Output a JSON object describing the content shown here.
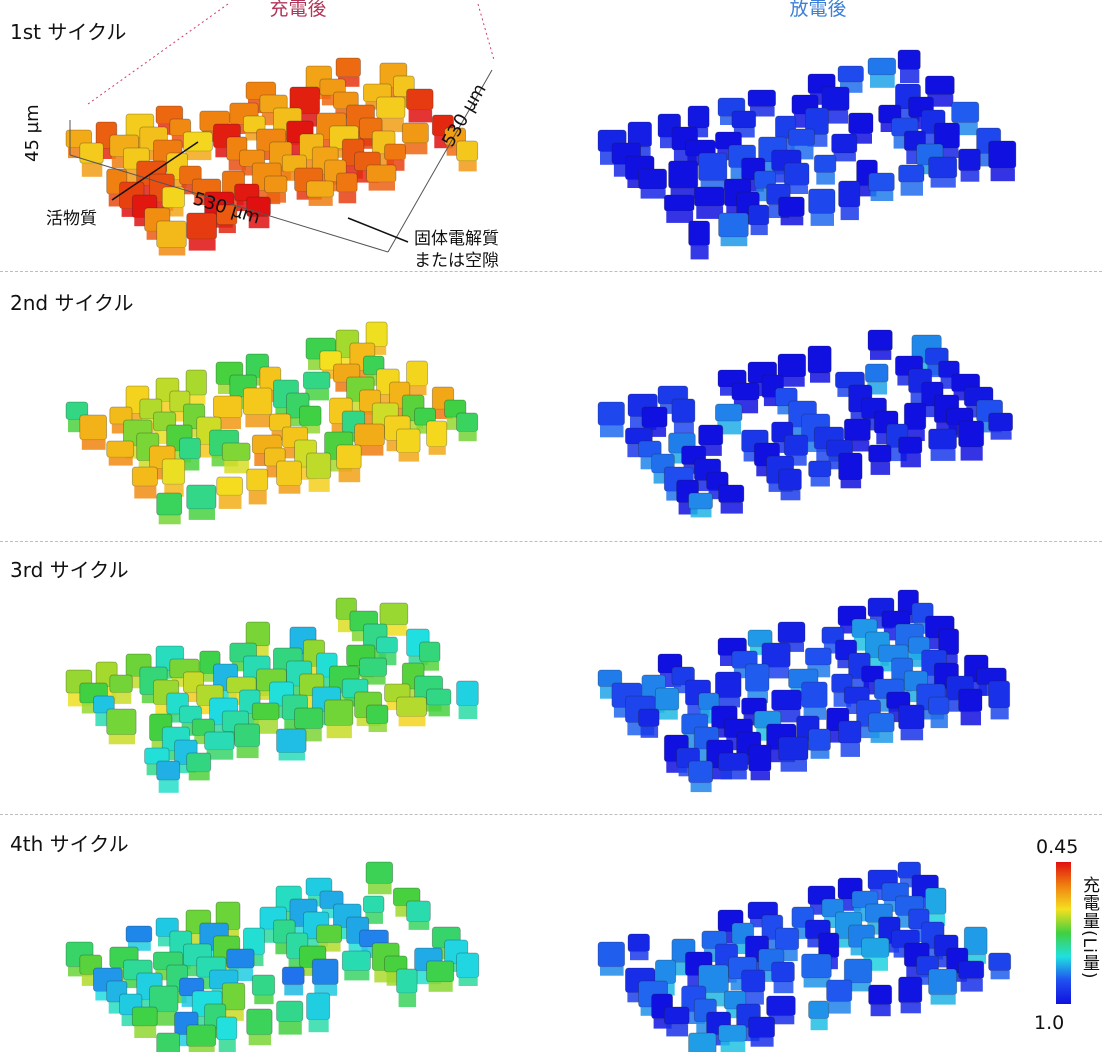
{
  "header": {
    "charged_label": "充電後",
    "discharged_label": "放電後",
    "charged_color": "#b0365a",
    "discharged_color": "#3b7fd6"
  },
  "cycles": [
    {
      "label": "1st サイクル",
      "charged_level": 0.85,
      "discharged_level": 0.05
    },
    {
      "label": "2nd サイクル",
      "charged_level": 0.6,
      "discharged_level": 0.06
    },
    {
      "label": "3rd サイクル",
      "charged_level": 0.45,
      "discharged_level": 0.08
    },
    {
      "label": "4th サイクル",
      "charged_level": 0.38,
      "discharged_level": 0.1
    }
  ],
  "annotations": {
    "height": "45 µm",
    "width_front": "530 µm",
    "width_side": "530 µm",
    "active_material": "活物質",
    "electrolyte_line1": "固体電解質",
    "electrolyte_line2": "または空隙"
  },
  "colorbar": {
    "max_label": "0.45",
    "min_label": "1.0",
    "title": "充電量(Li量)",
    "colors": [
      "#e01010",
      "#f08010",
      "#f5e020",
      "#40d040",
      "#20e0e0",
      "#2050f0",
      "#1010e0"
    ]
  }
}
